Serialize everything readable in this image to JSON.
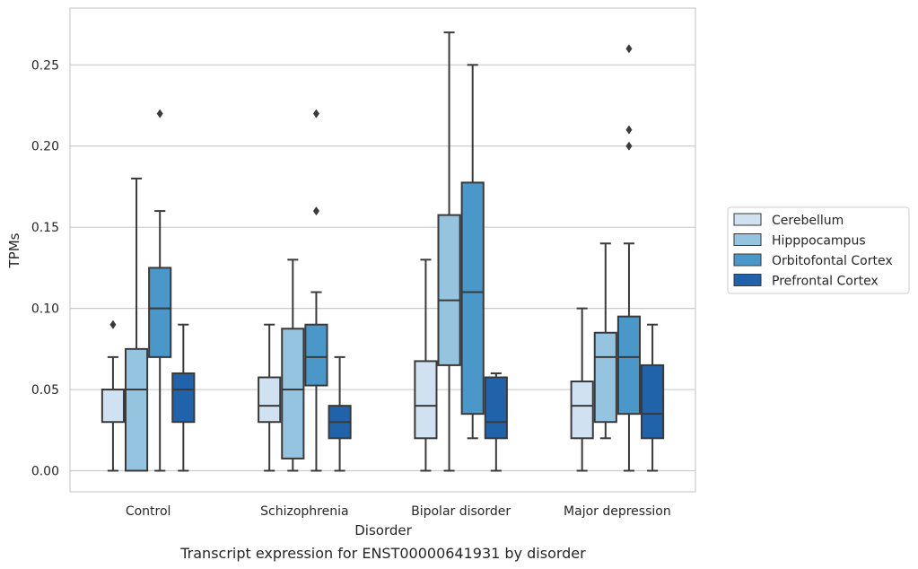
{
  "chart_data": {
    "type": "box",
    "title": "",
    "caption": "Transcript expression for ENST00000641931 by disorder",
    "xlabel": "Disorder",
    "ylabel": "TPMs",
    "ylim": [
      -0.013,
      0.285
    ],
    "yticks": [
      0.0,
      0.05,
      0.1,
      0.15,
      0.2,
      0.25
    ],
    "ytick_labels": [
      "0.00",
      "0.05",
      "0.10",
      "0.15",
      "0.20",
      "0.25"
    ],
    "grid": "horizontal",
    "legend_position": "right",
    "categories": [
      "Control",
      "Schizophrenia",
      "Bipolar disorder",
      "Major depression"
    ],
    "series": [
      {
        "name": "Cerebellum",
        "color": "#d0e1f2",
        "boxes": [
          {
            "whisker_low": 0.0,
            "q1": 0.03,
            "median": 0.05,
            "q3": 0.05,
            "whisker_high": 0.07,
            "outliers": [
              0.09
            ]
          },
          {
            "whisker_low": 0.0,
            "q1": 0.03,
            "median": 0.04,
            "q3": 0.0575,
            "whisker_high": 0.09,
            "outliers": []
          },
          {
            "whisker_low": 0.0,
            "q1": 0.02,
            "median": 0.04,
            "q3": 0.0675,
            "whisker_high": 0.13,
            "outliers": []
          },
          {
            "whisker_low": 0.0,
            "q1": 0.02,
            "median": 0.04,
            "q3": 0.055,
            "whisker_high": 0.1,
            "outliers": []
          }
        ]
      },
      {
        "name": "Hipppocampus",
        "color": "#94c4df",
        "boxes": [
          {
            "whisker_low": 0.0,
            "q1": 0.0,
            "median": 0.05,
            "q3": 0.075,
            "whisker_high": 0.18,
            "outliers": []
          },
          {
            "whisker_low": 0.0,
            "q1": 0.0075,
            "median": 0.05,
            "q3": 0.0875,
            "whisker_high": 0.13,
            "outliers": []
          },
          {
            "whisker_low": 0.0,
            "q1": 0.065,
            "median": 0.105,
            "q3": 0.1575,
            "whisker_high": 0.27,
            "outliers": []
          },
          {
            "whisker_low": 0.02,
            "q1": 0.03,
            "median": 0.07,
            "q3": 0.085,
            "whisker_high": 0.14,
            "outliers": []
          }
        ]
      },
      {
        "name": "Orbitofontal Cortex",
        "color": "#4a98c9",
        "boxes": [
          {
            "whisker_low": 0.0,
            "q1": 0.07,
            "median": 0.1,
            "q3": 0.125,
            "whisker_high": 0.16,
            "outliers": [
              0.22
            ]
          },
          {
            "whisker_low": 0.0,
            "q1": 0.0525,
            "median": 0.07,
            "q3": 0.09,
            "whisker_high": 0.11,
            "outliers": [
              0.16,
              0.22
            ]
          },
          {
            "whisker_low": 0.02,
            "q1": 0.035,
            "median": 0.11,
            "q3": 0.1775,
            "whisker_high": 0.25,
            "outliers": []
          },
          {
            "whisker_low": 0.0,
            "q1": 0.035,
            "median": 0.07,
            "q3": 0.095,
            "whisker_high": 0.14,
            "outliers": [
              0.2,
              0.21,
              0.26
            ]
          }
        ]
      },
      {
        "name": "Prefrontal Cortex",
        "color": "#2163aa",
        "boxes": [
          {
            "whisker_low": 0.0,
            "q1": 0.03,
            "median": 0.05,
            "q3": 0.06,
            "whisker_high": 0.09,
            "outliers": []
          },
          {
            "whisker_low": 0.0,
            "q1": 0.02,
            "median": 0.03,
            "q3": 0.04,
            "whisker_high": 0.07,
            "outliers": []
          },
          {
            "whisker_low": 0.0,
            "q1": 0.02,
            "median": 0.03,
            "q3": 0.0575,
            "whisker_high": 0.06,
            "outliers": []
          },
          {
            "whisker_low": 0.0,
            "q1": 0.02,
            "median": 0.035,
            "q3": 0.065,
            "whisker_high": 0.09,
            "outliers": []
          }
        ]
      }
    ]
  }
}
